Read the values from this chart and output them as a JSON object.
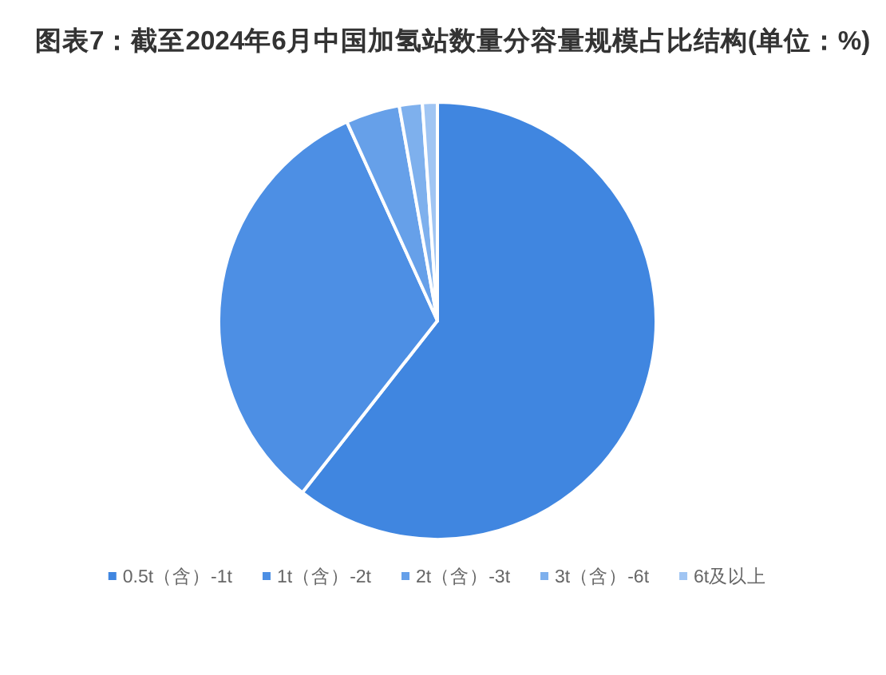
{
  "chart_data": {
    "type": "pie",
    "title": "图表7：截至2024年6月中国加氢站数量分容量规模占比结构(单位：%)",
    "categories": [
      "0.5t（含）-1t",
      "1t（含）-2t",
      "2t（含）-3t",
      "3t（含）-6t",
      "6t及以上"
    ],
    "values": [
      60.6,
      32.6,
      4.0,
      1.7,
      1.1
    ],
    "colors": [
      "#4086e0",
      "#4d8fe4",
      "#66a0e9",
      "#7eb0ed",
      "#a0c5f3"
    ],
    "legend": "bottom"
  }
}
